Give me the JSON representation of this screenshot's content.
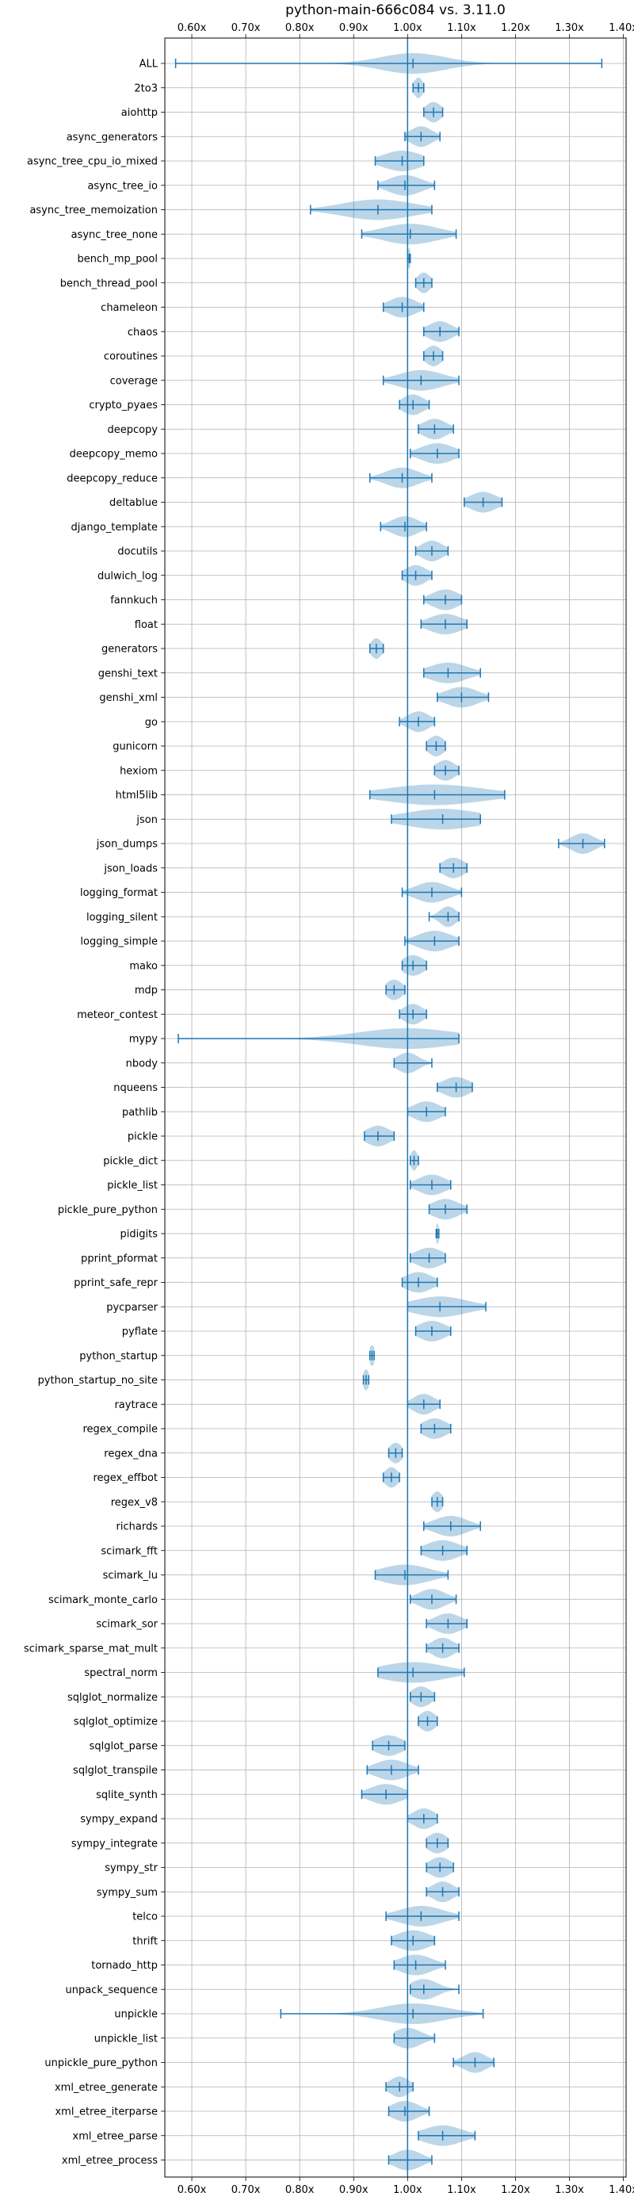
{
  "chart_data": {
    "type": "violin",
    "title": "python-main-666c084 vs. 3.11.0",
    "xlabel": "",
    "ylabel": "",
    "xlim": [
      0.55,
      1.405
    ],
    "xticks": [
      0.6,
      0.7,
      0.8,
      0.9,
      1.0,
      1.1,
      1.2,
      1.3,
      1.4
    ],
    "xtick_labels": [
      "0.60x",
      "0.70x",
      "0.80x",
      "0.90x",
      "1.00x",
      "1.10x",
      "1.20x",
      "1.30x",
      "1.40x"
    ],
    "xtick_labels_top": [
      "0.60x",
      "0.70x",
      "0.80x",
      "0.90x",
      "1.00x",
      "1.10x",
      "1.20x",
      "1.30x",
      "1.40x"
    ],
    "reference_line": 1.0,
    "grid": true,
    "color": "#1f77b4",
    "fill_color": "#1f77b4",
    "fill_opacity": 0.3,
    "series": [
      {
        "name": "ALL",
        "min": 0.57,
        "max": 1.36,
        "mean": 1.01,
        "w": 0.06
      },
      {
        "name": "2to3",
        "min": 1.01,
        "max": 1.03,
        "mean": 1.02,
        "w": 0.008
      },
      {
        "name": "aiohttp",
        "min": 1.03,
        "max": 1.065,
        "mean": 1.048,
        "w": 0.014
      },
      {
        "name": "async_generators",
        "min": 0.995,
        "max": 1.06,
        "mean": 1.025,
        "w": 0.02
      },
      {
        "name": "async_tree_cpu_io_mixed",
        "min": 0.94,
        "max": 1.03,
        "mean": 0.99,
        "w": 0.035
      },
      {
        "name": "async_tree_io",
        "min": 0.945,
        "max": 1.05,
        "mean": 0.995,
        "w": 0.03
      },
      {
        "name": "async_tree_memoization",
        "min": 0.82,
        "max": 1.045,
        "mean": 0.945,
        "w": 0.065
      },
      {
        "name": "async_tree_none",
        "min": 0.915,
        "max": 1.09,
        "mean": 1.005,
        "w": 0.05
      },
      {
        "name": "bench_mp_pool",
        "min": 1.0,
        "max": 1.005,
        "mean": 1.003,
        "w": 0.003
      },
      {
        "name": "bench_thread_pool",
        "min": 1.015,
        "max": 1.045,
        "mean": 1.03,
        "w": 0.012
      },
      {
        "name": "chameleon",
        "min": 0.955,
        "max": 1.03,
        "mean": 0.99,
        "w": 0.025
      },
      {
        "name": "chaos",
        "min": 1.03,
        "max": 1.095,
        "mean": 1.06,
        "w": 0.022
      },
      {
        "name": "coroutines",
        "min": 1.03,
        "max": 1.065,
        "mean": 1.048,
        "w": 0.015
      },
      {
        "name": "coverage",
        "min": 0.955,
        "max": 1.095,
        "mean": 1.025,
        "w": 0.04
      },
      {
        "name": "crypto_pyaes",
        "min": 0.985,
        "max": 1.04,
        "mean": 1.01,
        "w": 0.02
      },
      {
        "name": "deepcopy",
        "min": 1.02,
        "max": 1.085,
        "mean": 1.05,
        "w": 0.022
      },
      {
        "name": "deepcopy_memo",
        "min": 1.005,
        "max": 1.095,
        "mean": 1.055,
        "w": 0.03
      },
      {
        "name": "deepcopy_reduce",
        "min": 0.93,
        "max": 1.045,
        "mean": 0.99,
        "w": 0.03
      },
      {
        "name": "deltablue",
        "min": 1.105,
        "max": 1.175,
        "mean": 1.14,
        "w": 0.025
      },
      {
        "name": "django_template",
        "min": 0.95,
        "max": 1.035,
        "mean": 0.995,
        "w": 0.025
      },
      {
        "name": "docutils",
        "min": 1.015,
        "max": 1.075,
        "mean": 1.045,
        "w": 0.02
      },
      {
        "name": "dulwich_log",
        "min": 0.99,
        "max": 1.045,
        "mean": 1.015,
        "w": 0.02
      },
      {
        "name": "fannkuch",
        "min": 1.03,
        "max": 1.1,
        "mean": 1.07,
        "w": 0.025
      },
      {
        "name": "float",
        "min": 1.025,
        "max": 1.11,
        "mean": 1.07,
        "w": 0.03
      },
      {
        "name": "generators",
        "min": 0.93,
        "max": 0.955,
        "mean": 0.942,
        "w": 0.01
      },
      {
        "name": "genshi_text",
        "min": 1.03,
        "max": 1.135,
        "mean": 1.075,
        "w": 0.035
      },
      {
        "name": "genshi_xml",
        "min": 1.055,
        "max": 1.15,
        "mean": 1.1,
        "w": 0.03
      },
      {
        "name": "go",
        "min": 0.985,
        "max": 1.05,
        "mean": 1.02,
        "w": 0.02
      },
      {
        "name": "gunicorn",
        "min": 1.035,
        "max": 1.07,
        "mean": 1.053,
        "w": 0.015
      },
      {
        "name": "hexiom",
        "min": 1.05,
        "max": 1.095,
        "mean": 1.07,
        "w": 0.018
      },
      {
        "name": "html5lib",
        "min": 0.93,
        "max": 1.18,
        "mean": 1.05,
        "w": 0.09
      },
      {
        "name": "json",
        "min": 0.97,
        "max": 1.135,
        "mean": 1.065,
        "w": 0.07
      },
      {
        "name": "json_dumps",
        "min": 1.28,
        "max": 1.365,
        "mean": 1.325,
        "w": 0.022
      },
      {
        "name": "json_loads",
        "min": 1.06,
        "max": 1.11,
        "mean": 1.085,
        "w": 0.02
      },
      {
        "name": "logging_format",
        "min": 0.99,
        "max": 1.1,
        "mean": 1.045,
        "w": 0.03
      },
      {
        "name": "logging_silent",
        "min": 1.04,
        "max": 1.095,
        "mean": 1.075,
        "w": 0.015
      },
      {
        "name": "logging_simple",
        "min": 0.995,
        "max": 1.095,
        "mean": 1.05,
        "w": 0.03
      },
      {
        "name": "mako",
        "min": 0.99,
        "max": 1.035,
        "mean": 1.01,
        "w": 0.02
      },
      {
        "name": "mdp",
        "min": 0.96,
        "max": 0.995,
        "mean": 0.975,
        "w": 0.015
      },
      {
        "name": "meteor_contest",
        "min": 0.985,
        "max": 1.035,
        "mean": 1.01,
        "w": 0.018
      },
      {
        "name": "mypy",
        "min": 0.575,
        "max": 1.095,
        "mean": 1.0,
        "w": 0.09
      },
      {
        "name": "nbody",
        "min": 0.975,
        "max": 1.045,
        "mean": 1.0,
        "w": 0.02
      },
      {
        "name": "nqueens",
        "min": 1.055,
        "max": 1.12,
        "mean": 1.09,
        "w": 0.025
      },
      {
        "name": "pathlib",
        "min": 1.0,
        "max": 1.07,
        "mean": 1.035,
        "w": 0.025
      },
      {
        "name": "pickle",
        "min": 0.92,
        "max": 0.975,
        "mean": 0.945,
        "w": 0.022
      },
      {
        "name": "pickle_dict",
        "min": 1.005,
        "max": 1.02,
        "mean": 1.012,
        "w": 0.006
      },
      {
        "name": "pickle_list",
        "min": 1.005,
        "max": 1.08,
        "mean": 1.045,
        "w": 0.025
      },
      {
        "name": "pickle_pure_python",
        "min": 1.04,
        "max": 1.11,
        "mean": 1.07,
        "w": 0.025
      },
      {
        "name": "pidigits",
        "min": 1.053,
        "max": 1.058,
        "mean": 1.055,
        "w": 0.003
      },
      {
        "name": "pprint_pformat",
        "min": 1.005,
        "max": 1.07,
        "mean": 1.04,
        "w": 0.025
      },
      {
        "name": "pprint_safe_repr",
        "min": 0.99,
        "max": 1.055,
        "mean": 1.02,
        "w": 0.025
      },
      {
        "name": "pycparser",
        "min": 1.0,
        "max": 1.145,
        "mean": 1.06,
        "w": 0.05
      },
      {
        "name": "pyflate",
        "min": 1.015,
        "max": 1.08,
        "mean": 1.045,
        "w": 0.025
      },
      {
        "name": "python_startup",
        "min": 0.93,
        "max": 0.938,
        "mean": 0.934,
        "w": 0.006
      },
      {
        "name": "python_startup_no_site",
        "min": 0.918,
        "max": 0.928,
        "mean": 0.923,
        "w": 0.006
      },
      {
        "name": "raytrace",
        "min": 1.0,
        "max": 1.06,
        "mean": 1.03,
        "w": 0.02
      },
      {
        "name": "regex_compile",
        "min": 1.025,
        "max": 1.08,
        "mean": 1.05,
        "w": 0.022
      },
      {
        "name": "regex_dna",
        "min": 0.965,
        "max": 0.99,
        "mean": 0.978,
        "w": 0.012
      },
      {
        "name": "regex_effbot",
        "min": 0.955,
        "max": 0.985,
        "mean": 0.97,
        "w": 0.012
      },
      {
        "name": "regex_v8",
        "min": 1.045,
        "max": 1.065,
        "mean": 1.055,
        "w": 0.01
      },
      {
        "name": "richards",
        "min": 1.03,
        "max": 1.135,
        "mean": 1.08,
        "w": 0.03
      },
      {
        "name": "scimark_fft",
        "min": 1.025,
        "max": 1.11,
        "mean": 1.065,
        "w": 0.03
      },
      {
        "name": "scimark_lu",
        "min": 0.94,
        "max": 1.075,
        "mean": 0.995,
        "w": 0.045
      },
      {
        "name": "scimark_monte_carlo",
        "min": 1.005,
        "max": 1.09,
        "mean": 1.045,
        "w": 0.025
      },
      {
        "name": "scimark_sor",
        "min": 1.035,
        "max": 1.11,
        "mean": 1.075,
        "w": 0.025
      },
      {
        "name": "scimark_sparse_mat_mult",
        "min": 1.035,
        "max": 1.095,
        "mean": 1.065,
        "w": 0.02
      },
      {
        "name": "spectral_norm",
        "min": 0.945,
        "max": 1.105,
        "mean": 1.01,
        "w": 0.06
      },
      {
        "name": "sqlglot_normalize",
        "min": 1.005,
        "max": 1.05,
        "mean": 1.025,
        "w": 0.018
      },
      {
        "name": "sqlglot_optimize",
        "min": 1.02,
        "max": 1.055,
        "mean": 1.037,
        "w": 0.015
      },
      {
        "name": "sqlglot_parse",
        "min": 0.935,
        "max": 0.995,
        "mean": 0.965,
        "w": 0.025
      },
      {
        "name": "sqlglot_transpile",
        "min": 0.925,
        "max": 1.02,
        "mean": 0.97,
        "w": 0.03
      },
      {
        "name": "sqlite_synth",
        "min": 0.915,
        "max": 1.0,
        "mean": 0.96,
        "w": 0.03
      },
      {
        "name": "sympy_expand",
        "min": 1.0,
        "max": 1.055,
        "mean": 1.03,
        "w": 0.02
      },
      {
        "name": "sympy_integrate",
        "min": 1.035,
        "max": 1.075,
        "mean": 1.055,
        "w": 0.018
      },
      {
        "name": "sympy_str",
        "min": 1.035,
        "max": 1.085,
        "mean": 1.06,
        "w": 0.02
      },
      {
        "name": "sympy_sum",
        "min": 1.035,
        "max": 1.095,
        "mean": 1.065,
        "w": 0.02
      },
      {
        "name": "telco",
        "min": 0.96,
        "max": 1.095,
        "mean": 1.025,
        "w": 0.04
      },
      {
        "name": "thrift",
        "min": 0.97,
        "max": 1.05,
        "mean": 1.01,
        "w": 0.03
      },
      {
        "name": "tornado_http",
        "min": 0.975,
        "max": 1.07,
        "mean": 1.015,
        "w": 0.03
      },
      {
        "name": "unpack_sequence",
        "min": 1.005,
        "max": 1.095,
        "mean": 1.03,
        "w": 0.025
      },
      {
        "name": "unpickle",
        "min": 0.765,
        "max": 1.14,
        "mean": 1.01,
        "w": 0.06
      },
      {
        "name": "unpickle_list",
        "min": 0.975,
        "max": 1.05,
        "mean": 1.0,
        "w": 0.025
      },
      {
        "name": "unpickle_pure_python",
        "min": 1.085,
        "max": 1.16,
        "mean": 1.125,
        "w": 0.022
      },
      {
        "name": "xml_etree_generate",
        "min": 0.96,
        "max": 1.01,
        "mean": 0.985,
        "w": 0.018
      },
      {
        "name": "xml_etree_iterparse",
        "min": 0.965,
        "max": 1.04,
        "mean": 0.995,
        "w": 0.025
      },
      {
        "name": "xml_etree_parse",
        "min": 1.02,
        "max": 1.125,
        "mean": 1.065,
        "w": 0.035
      },
      {
        "name": "xml_etree_process",
        "min": 0.965,
        "max": 1.045,
        "mean": 1.0,
        "w": 0.025
      }
    ]
  }
}
